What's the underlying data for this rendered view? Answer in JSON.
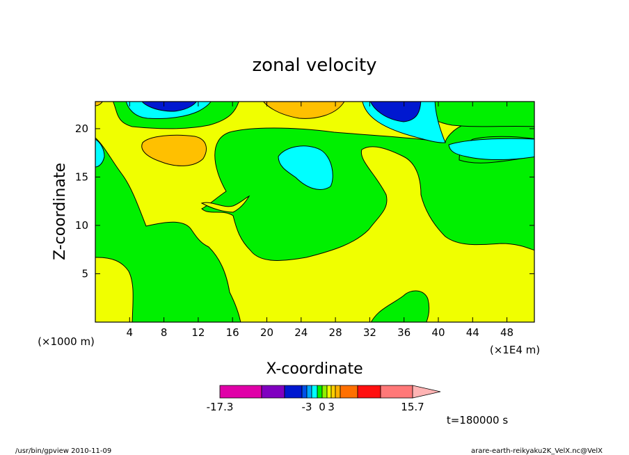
{
  "chart_data": {
    "type": "heatmap",
    "title": "zonal velocity",
    "xlabel": "X-coordinate",
    "ylabel": "Z-coordinate",
    "x_unit": "(×1E4 m)",
    "y_unit": "(×1000 m)",
    "x_ticks": [
      4,
      8,
      12,
      16,
      20,
      24,
      28,
      32,
      36,
      40,
      44,
      48
    ],
    "y_ticks": [
      5,
      10,
      15,
      20
    ],
    "xlim": [
      0,
      51.2
    ],
    "ylim": [
      0,
      22.8
    ],
    "time_label": "t=180000 s",
    "colorbar": {
      "labels": [
        {
          "text": "-17.3",
          "value": -17.3
        },
        {
          "text": "-3",
          "value": -3
        },
        {
          "text": "0",
          "value": 0
        },
        {
          "text": "3",
          "value": 3
        },
        {
          "text": "15.7",
          "value": 15.7
        }
      ],
      "levels": [
        {
          "color": "#e000a8"
        },
        {
          "color": "#8000c0"
        },
        {
          "color": "#0018d0"
        },
        {
          "color": "#0050e8"
        },
        {
          "color": "#00a8ff"
        },
        {
          "color": "#00ffff"
        },
        {
          "color": "#00f000"
        },
        {
          "color": "#90f000"
        },
        {
          "color": "#f0ff00"
        },
        {
          "color": "#ffd000"
        },
        {
          "color": "#ffb000"
        },
        {
          "color": "#ff7000"
        },
        {
          "color": "#ff1010"
        },
        {
          "color": "#ff7878"
        }
      ],
      "overflow_color": "#ffb4b4"
    }
  },
  "footer": {
    "left": "/usr/bin/gpview  2010-11-09",
    "right": "arare-earth-reikyaku2K_VelX.nc@VelX"
  }
}
